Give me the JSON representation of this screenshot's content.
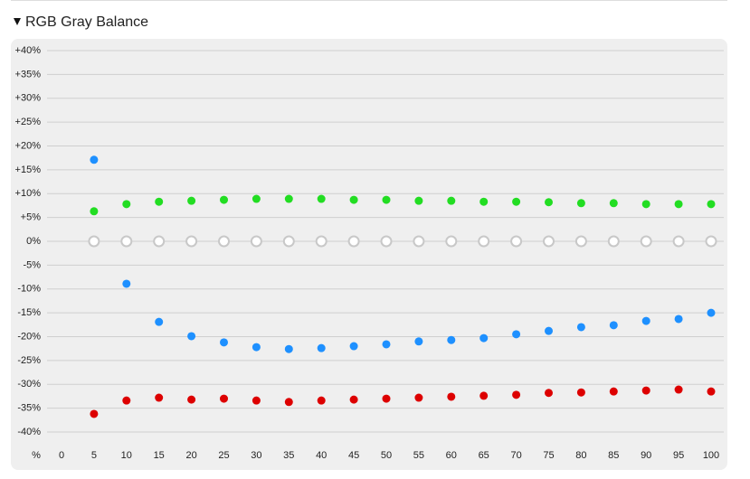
{
  "chart_data": {
    "type": "scatter",
    "title": "RGB Gray Balance",
    "xlabel": "%",
    "x": [
      5,
      10,
      15,
      20,
      25,
      30,
      35,
      40,
      45,
      50,
      55,
      60,
      65,
      70,
      75,
      80,
      85,
      90,
      95,
      100
    ],
    "series": [
      {
        "color": "#c8c8c8",
        "fill": "#ffffff",
        "values": [
          0,
          0,
          0,
          0,
          0,
          0,
          0,
          0,
          0,
          0,
          0,
          0,
          0,
          0,
          0,
          0,
          0,
          0,
          0,
          0
        ]
      },
      {
        "color": "#22dd22",
        "values": [
          6.3,
          7.8,
          8.3,
          8.5,
          8.7,
          8.9,
          8.9,
          8.9,
          8.7,
          8.7,
          8.5,
          8.5,
          8.3,
          8.3,
          8.2,
          8.0,
          8.0,
          7.8,
          7.8,
          7.8
        ]
      },
      {
        "color": "#1e90ff",
        "values": [
          17.1,
          -8.9,
          -16.9,
          -19.9,
          -21.2,
          -22.2,
          -22.6,
          -22.4,
          -22.0,
          -21.6,
          -21.0,
          -20.7,
          -20.3,
          -19.5,
          -18.8,
          -18.0,
          -17.6,
          -16.7,
          -16.3,
          -15.0
        ]
      },
      {
        "color": "#dd0000",
        "values": [
          -36.2,
          -33.4,
          -32.8,
          -33.2,
          -33.0,
          -33.4,
          -33.7,
          -33.4,
          -33.2,
          -33.0,
          -32.8,
          -32.6,
          -32.4,
          -32.2,
          -31.8,
          -31.7,
          -31.5,
          -31.3,
          -31.1,
          -31.5
        ]
      }
    ],
    "xlim": [
      0,
      100
    ],
    "xticks": [
      0,
      5,
      10,
      15,
      20,
      25,
      30,
      35,
      40,
      45,
      50,
      55,
      60,
      65,
      70,
      75,
      80,
      85,
      90,
      95,
      100
    ],
    "ylim": [
      -40,
      40
    ],
    "yticks": [
      {
        "value": 40,
        "label": "+40%"
      },
      {
        "value": 35,
        "label": "+35%"
      },
      {
        "value": 30,
        "label": "+30%"
      },
      {
        "value": 25,
        "label": "+25%"
      },
      {
        "value": 20,
        "label": "+20%"
      },
      {
        "value": 15,
        "label": "+15%"
      },
      {
        "value": 10,
        "label": "+10%"
      },
      {
        "value": 5,
        "label": "+5%"
      },
      {
        "value": 0,
        "label": "0%"
      },
      {
        "value": -5,
        "label": "-5%"
      },
      {
        "value": -10,
        "label": "-10%"
      },
      {
        "value": -15,
        "label": "-15%"
      },
      {
        "value": -20,
        "label": "-20%"
      },
      {
        "value": -25,
        "label": "-25%"
      },
      {
        "value": -30,
        "label": "-30%"
      },
      {
        "value": -35,
        "label": "-35%"
      },
      {
        "value": -40,
        "label": "-40%"
      }
    ],
    "grid": true
  }
}
